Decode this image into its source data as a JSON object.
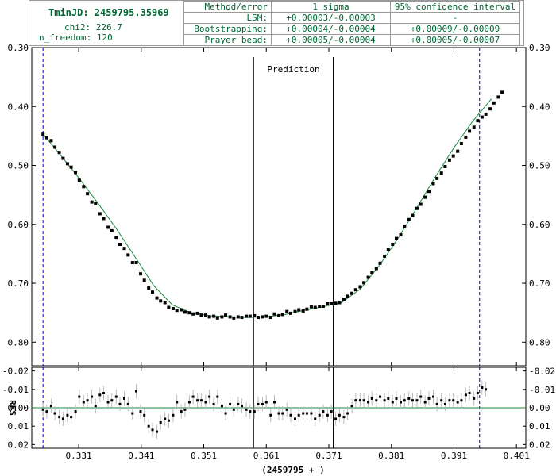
{
  "info": {
    "tmin": "TminJD: 2459795.35969",
    "chi2": "chi2: 226.7",
    "n_freedom": "n_freedom: 120",
    "table": {
      "header": [
        "Method/error",
        "1 sigma",
        "95% confidence interval"
      ],
      "rows": [
        [
          "LSM:",
          "+0.00003/-0.00003",
          "-"
        ],
        [
          "Bootstrapping:",
          "+0.00004/-0.00004",
          "+0.00009/-0.00009"
        ],
        [
          "Prayer bead:",
          "+0.00005/-0.00004",
          "+0.00005/-0.00007"
        ]
      ]
    }
  },
  "colors": {
    "model": "#1a8a3a",
    "points": "#000000",
    "prediction_line": "#cc0000",
    "observed_line": "#000066",
    "window_lines": "#0000cc",
    "annotation": "#0000aa",
    "error_bars": "#bbbbbb"
  },
  "chart_data": [
    {
      "type": "scatter",
      "panel": "light curve",
      "x_offset_label": "2459795",
      "y_inverted": true,
      "xlim": [
        0.3235,
        0.4025
      ],
      "ylim": [
        0.3,
        0.84
      ],
      "yticks": [
        "0.30",
        "0.40",
        "0.50",
        "0.60",
        "0.70",
        "0.80"
      ],
      "series": [
        {
          "kind": "points",
          "x": [
            0.3253,
            0.3259,
            0.3266,
            0.3272,
            0.3279,
            0.3285,
            0.3292,
            0.3298,
            0.3305,
            0.3311,
            0.3318,
            0.3324,
            0.3331,
            0.3337,
            0.3344,
            0.335,
            0.3357,
            0.3363,
            0.337,
            0.3376,
            0.3383,
            0.3389,
            0.3396,
            0.3402,
            0.3409,
            0.3415,
            0.3422,
            0.3428,
            0.3435,
            0.3441,
            0.3448,
            0.3454,
            0.3461,
            0.3467,
            0.3474,
            0.348,
            0.3487,
            0.3493,
            0.35,
            0.3506,
            0.3513,
            0.3519,
            0.3526,
            0.3532,
            0.3539,
            0.3545,
            0.3552,
            0.3558,
            0.3565,
            0.3571,
            0.3578,
            0.3584,
            0.3591,
            0.3597,
            0.3604,
            0.361,
            0.3617,
            0.3623,
            0.363,
            0.3636,
            0.3643,
            0.3649,
            0.3656,
            0.3662,
            0.3669,
            0.3675,
            0.3682,
            0.3688,
            0.3695,
            0.3701,
            0.3708,
            0.3714,
            0.3721,
            0.3727,
            0.3734,
            0.374,
            0.3747,
            0.3753,
            0.376,
            0.3766,
            0.3773,
            0.3779,
            0.3786,
            0.3792,
            0.3799,
            0.3805,
            0.3812,
            0.3818,
            0.3825,
            0.3831,
            0.3838,
            0.3844,
            0.3851,
            0.3857,
            0.3864,
            0.387,
            0.3877,
            0.3883,
            0.389,
            0.3896,
            0.3903,
            0.3909,
            0.3916,
            0.3922,
            0.3929,
            0.3935,
            0.3942,
            0.3948,
            0.3955,
            0.3961,
            0.3968,
            0.3974,
            0.3981,
            0.3987
          ],
          "y": [
            0.447,
            0.453,
            0.458,
            0.469,
            0.478,
            0.488,
            0.497,
            0.503,
            0.512,
            0.525,
            0.536,
            0.548,
            0.562,
            0.565,
            0.582,
            0.59,
            0.605,
            0.611,
            0.622,
            0.634,
            0.641,
            0.652,
            0.665,
            0.665,
            0.684,
            0.695,
            0.708,
            0.715,
            0.725,
            0.73,
            0.733,
            0.741,
            0.743,
            0.746,
            0.745,
            0.749,
            0.75,
            0.752,
            0.751,
            0.754,
            0.754,
            0.757,
            0.756,
            0.759,
            0.757,
            0.754,
            0.757,
            0.759,
            0.757,
            0.758,
            0.756,
            0.756,
            0.755,
            0.758,
            0.757,
            0.756,
            0.758,
            0.752,
            0.755,
            0.753,
            0.748,
            0.751,
            0.748,
            0.745,
            0.747,
            0.744,
            0.74,
            0.741,
            0.739,
            0.739,
            0.735,
            0.735,
            0.734,
            0.733,
            0.727,
            0.722,
            0.717,
            0.711,
            0.706,
            0.699,
            0.69,
            0.682,
            0.675,
            0.666,
            0.654,
            0.643,
            0.634,
            0.624,
            0.618,
            0.603,
            0.592,
            0.585,
            0.573,
            0.566,
            0.554,
            0.544,
            0.531,
            0.522,
            0.513,
            0.502,
            0.491,
            0.484,
            0.476,
            0.463,
            0.452,
            0.442,
            0.435,
            0.424,
            0.418,
            0.413,
            0.404,
            0.394,
            0.384,
            0.376
          ]
        },
        {
          "kind": "model",
          "x": [
            0.3253,
            0.328,
            0.331,
            0.334,
            0.337,
            0.34,
            0.343,
            0.346,
            0.349,
            0.352,
            0.355,
            0.358,
            0.361,
            0.364,
            0.367,
            0.37,
            0.373,
            0.376,
            0.379,
            0.382,
            0.385,
            0.388,
            0.391,
            0.394,
            0.397
          ],
          "y": [
            0.447,
            0.481,
            0.521,
            0.563,
            0.607,
            0.655,
            0.704,
            0.737,
            0.75,
            0.755,
            0.757,
            0.758,
            0.757,
            0.753,
            0.746,
            0.74,
            0.733,
            0.71,
            0.671,
            0.625,
            0.573,
            0.52,
            0.47,
            0.425,
            0.387
          ]
        }
      ],
      "markers": [
        {
          "x": 0.3253,
          "style": "window"
        },
        {
          "x": 0.359,
          "style": "prediction"
        },
        {
          "x": 0.3717,
          "style": "observed"
        },
        {
          "x": 0.3951,
          "style": "window"
        }
      ],
      "annotation": "Prediction"
    },
    {
      "type": "scatter",
      "panel": "residuals",
      "y_inverted": true,
      "ylabel": "RES",
      "xlim": [
        0.3235,
        0.4025
      ],
      "ylim": [
        -0.022,
        0.022
      ],
      "yticks": [
        "-0.02",
        "-0.01",
        "0.00",
        "0.01",
        "0.02"
      ],
      "xticks": [
        "0.331",
        "0.341",
        "0.351",
        "0.361",
        "0.371",
        "0.381",
        "0.391",
        "0.401"
      ],
      "xlabel": "(2459795 + )",
      "residuals": [
        0.001,
        0.002,
        -0.001,
        0.003,
        0.005,
        0.006,
        0.004,
        0.005,
        0.002,
        -0.006,
        -0.003,
        -0.004,
        -0.006,
        -0.001,
        -0.007,
        -0.008,
        -0.003,
        -0.004,
        -0.006,
        -0.002,
        -0.005,
        -0.002,
        0.003,
        -0.009,
        0.002,
        0.004,
        0.01,
        0.012,
        0.013,
        0.008,
        0.006,
        0.007,
        0.004,
        -0.003,
        0.002,
        0.001,
        -0.003,
        -0.006,
        -0.004,
        -0.004,
        -0.003,
        -0.006,
        -0.002,
        -0.006,
        -0.001,
        0.003,
        -0.002,
        0.001,
        -0.002,
        -0.001,
        0.001,
        0.002,
        0.002,
        -0.002,
        -0.002,
        -0.003,
        0.004,
        -0.003,
        0.003,
        0.003,
        0.001,
        0.004,
        0.006,
        0.004,
        0.003,
        0.003,
        0.003,
        0.006,
        0.004,
        0.002,
        0.004,
        0.002,
        0.006,
        0.004,
        0.005,
        0.003,
        -0.001,
        -0.004,
        -0.004,
        -0.004,
        -0.003,
        -0.005,
        -0.004,
        -0.006,
        -0.004,
        -0.005,
        -0.003,
        -0.005,
        -0.003,
        -0.004,
        -0.005,
        -0.004,
        -0.004,
        -0.006,
        -0.003,
        -0.005,
        -0.006,
        -0.002,
        -0.004,
        -0.002,
        -0.004,
        -0.004,
        -0.003,
        -0.004,
        -0.007,
        -0.008,
        -0.005,
        -0.008,
        -0.011,
        -0.01
      ]
    }
  ]
}
